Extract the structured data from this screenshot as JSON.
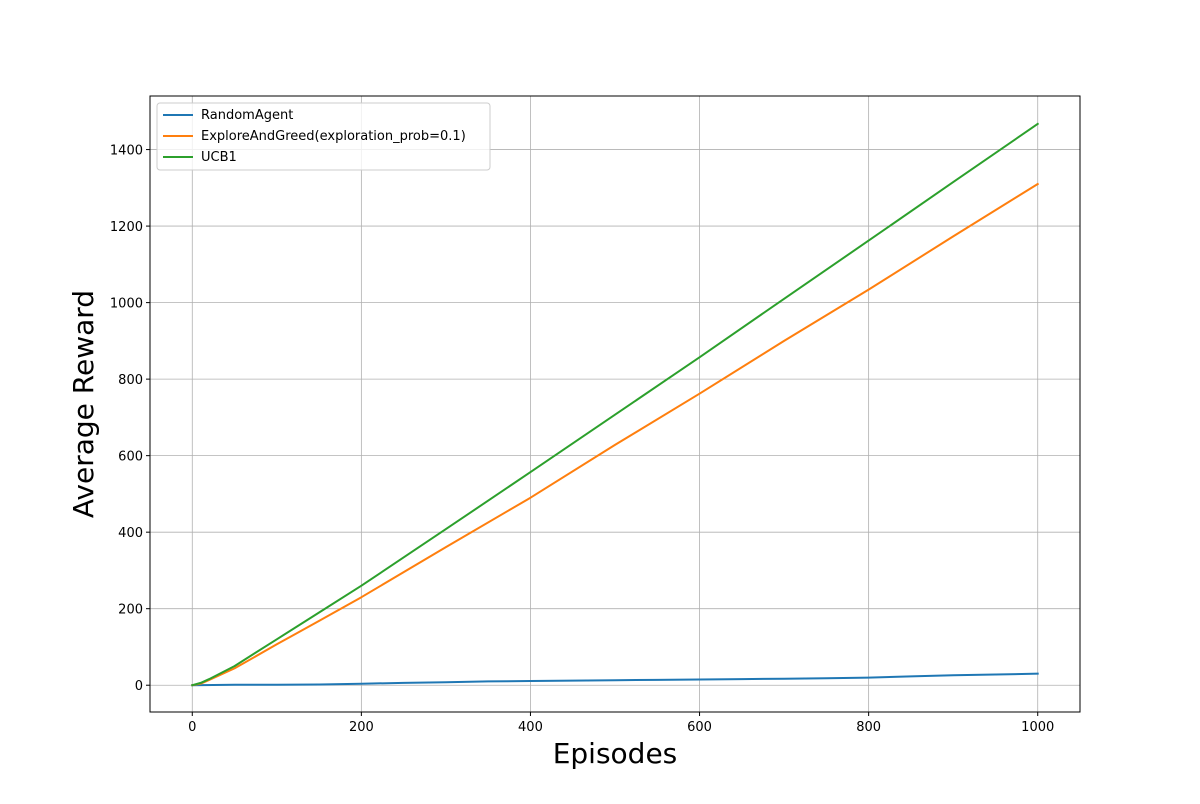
{
  "chart_data": {
    "type": "line",
    "title": "",
    "xlabel": "Episodes",
    "ylabel": "Average Reward",
    "xlim": [
      -50,
      1050
    ],
    "ylim": [
      -70,
      1540
    ],
    "xticks": [
      0,
      200,
      400,
      600,
      800,
      1000
    ],
    "yticks": [
      0,
      200,
      400,
      600,
      800,
      1000,
      1200,
      1400
    ],
    "grid": true,
    "legend_position": "top-left",
    "series": [
      {
        "name": "RandomAgent",
        "color": "#1f77b4",
        "x": [
          0,
          50,
          100,
          150,
          200,
          250,
          300,
          350,
          400,
          450,
          500,
          550,
          600,
          650,
          700,
          750,
          800,
          850,
          900,
          950,
          1000
        ],
        "y": [
          0,
          1,
          1,
          2,
          4,
          6,
          8,
          10,
          11,
          12,
          13,
          14,
          15,
          16,
          17,
          18,
          20,
          23,
          26,
          28,
          30
        ]
      },
      {
        "name": "ExploreAndGreed(exploration_prob=0.1)",
        "color": "#ff7f0e",
        "x": [
          0,
          10,
          20,
          50,
          100,
          150,
          200,
          300,
          400,
          500,
          600,
          700,
          800,
          900,
          1000
        ],
        "y": [
          0,
          4,
          14,
          44,
          107,
          168,
          230,
          361,
          490,
          628,
          762,
          900,
          1034,
          1173,
          1310
        ]
      },
      {
        "name": "UCB1",
        "color": "#2ca02c",
        "x": [
          0,
          10,
          20,
          50,
          100,
          150,
          200,
          300,
          400,
          500,
          600,
          700,
          800,
          900,
          1000
        ],
        "y": [
          0,
          6,
          16,
          50,
          120,
          190,
          260,
          408,
          557,
          707,
          857,
          1010,
          1162,
          1315,
          1467
        ]
      }
    ]
  }
}
